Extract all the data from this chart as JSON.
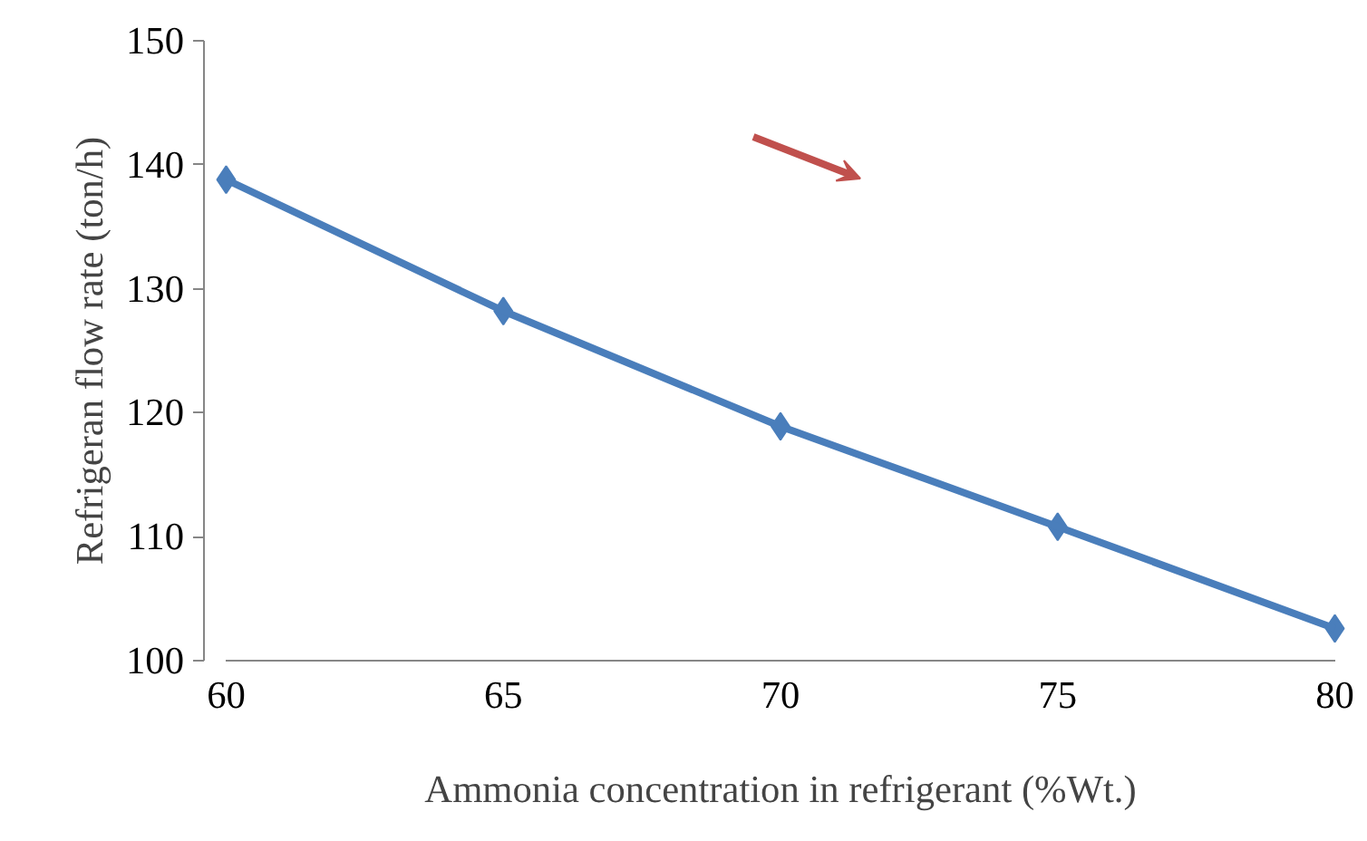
{
  "chart_data": {
    "type": "line",
    "xlabel": "Ammonia concentration in refrigerant (%Wt.)",
    "ylabel": "Refrigeran flow rate (ton/h)",
    "x": [
      60,
      65,
      70,
      75,
      80
    ],
    "series": [
      {
        "color": "#4a7ebb",
        "values": [
          138.8,
          128.2,
          118.9,
          110.8,
          102.6
        ]
      }
    ],
    "xlim": [
      60,
      80
    ],
    "xticks": [
      60,
      65,
      70,
      75,
      80
    ],
    "ylim": [
      100,
      150
    ],
    "yticks": [
      100,
      110,
      120,
      130,
      140,
      150
    ],
    "grid": false,
    "marker": "diamond",
    "line_style": "solid"
  }
}
